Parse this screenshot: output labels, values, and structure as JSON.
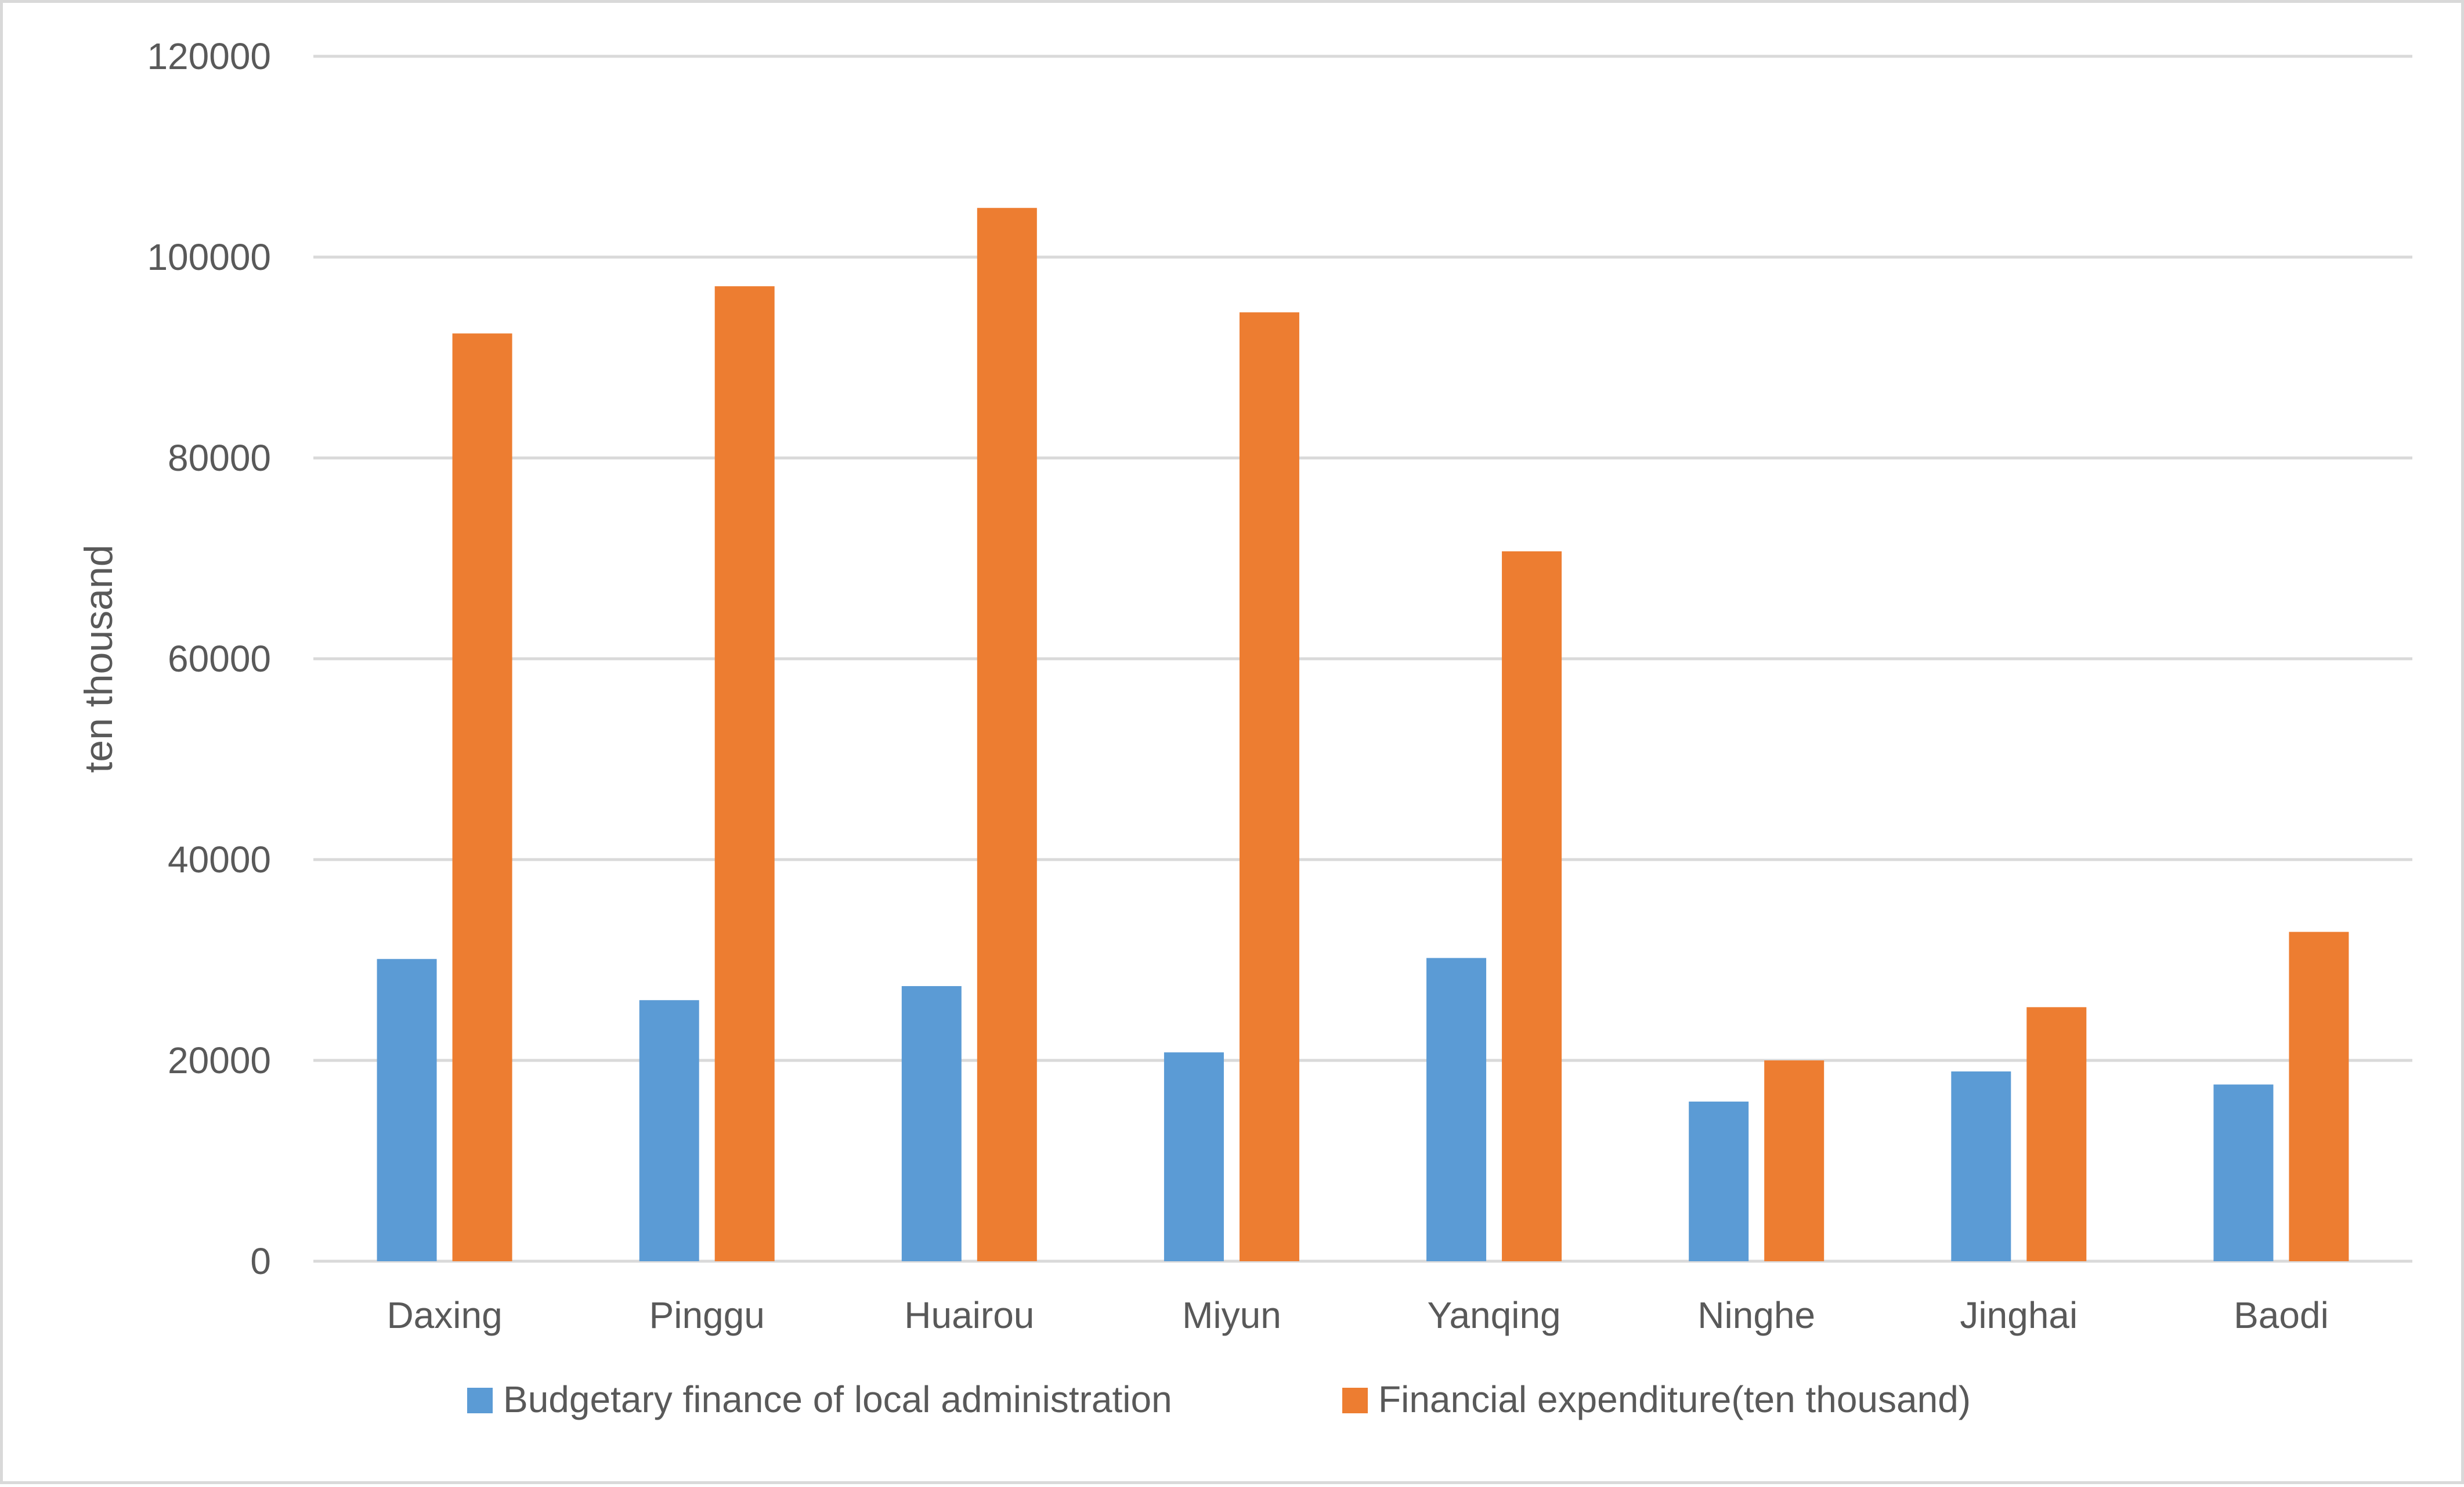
{
  "chart_data": {
    "type": "bar",
    "title": "",
    "xlabel": "",
    "ylabel": "ten thousand",
    "categories": [
      "Daxing",
      "Pinggu",
      "Huairou",
      "Miyun",
      "Yanqing",
      "Ninghe",
      "Jinghai",
      "Baodi"
    ],
    "series": [
      {
        "name": "Budgetary finance of local administration",
        "color": "#5b9bd5",
        "values": [
          30100,
          26000,
          27400,
          20800,
          30200,
          15900,
          18900,
          17600
        ]
      },
      {
        "name": "Financial expenditure(ten thousand)",
        "color": "#ed7d31",
        "values": [
          92400,
          97100,
          104900,
          94500,
          70700,
          20000,
          25300,
          32800
        ]
      }
    ],
    "ylim": [
      0,
      120000
    ],
    "yticks": [
      "0",
      "20000",
      "40000",
      "60000",
      "80000",
      "100000",
      "120000"
    ],
    "grid": true,
    "legend_position": "bottom",
    "colors": {
      "gridline": "#d9d9d9",
      "axis_text": "#595959",
      "border": "#d9d9d9"
    }
  }
}
